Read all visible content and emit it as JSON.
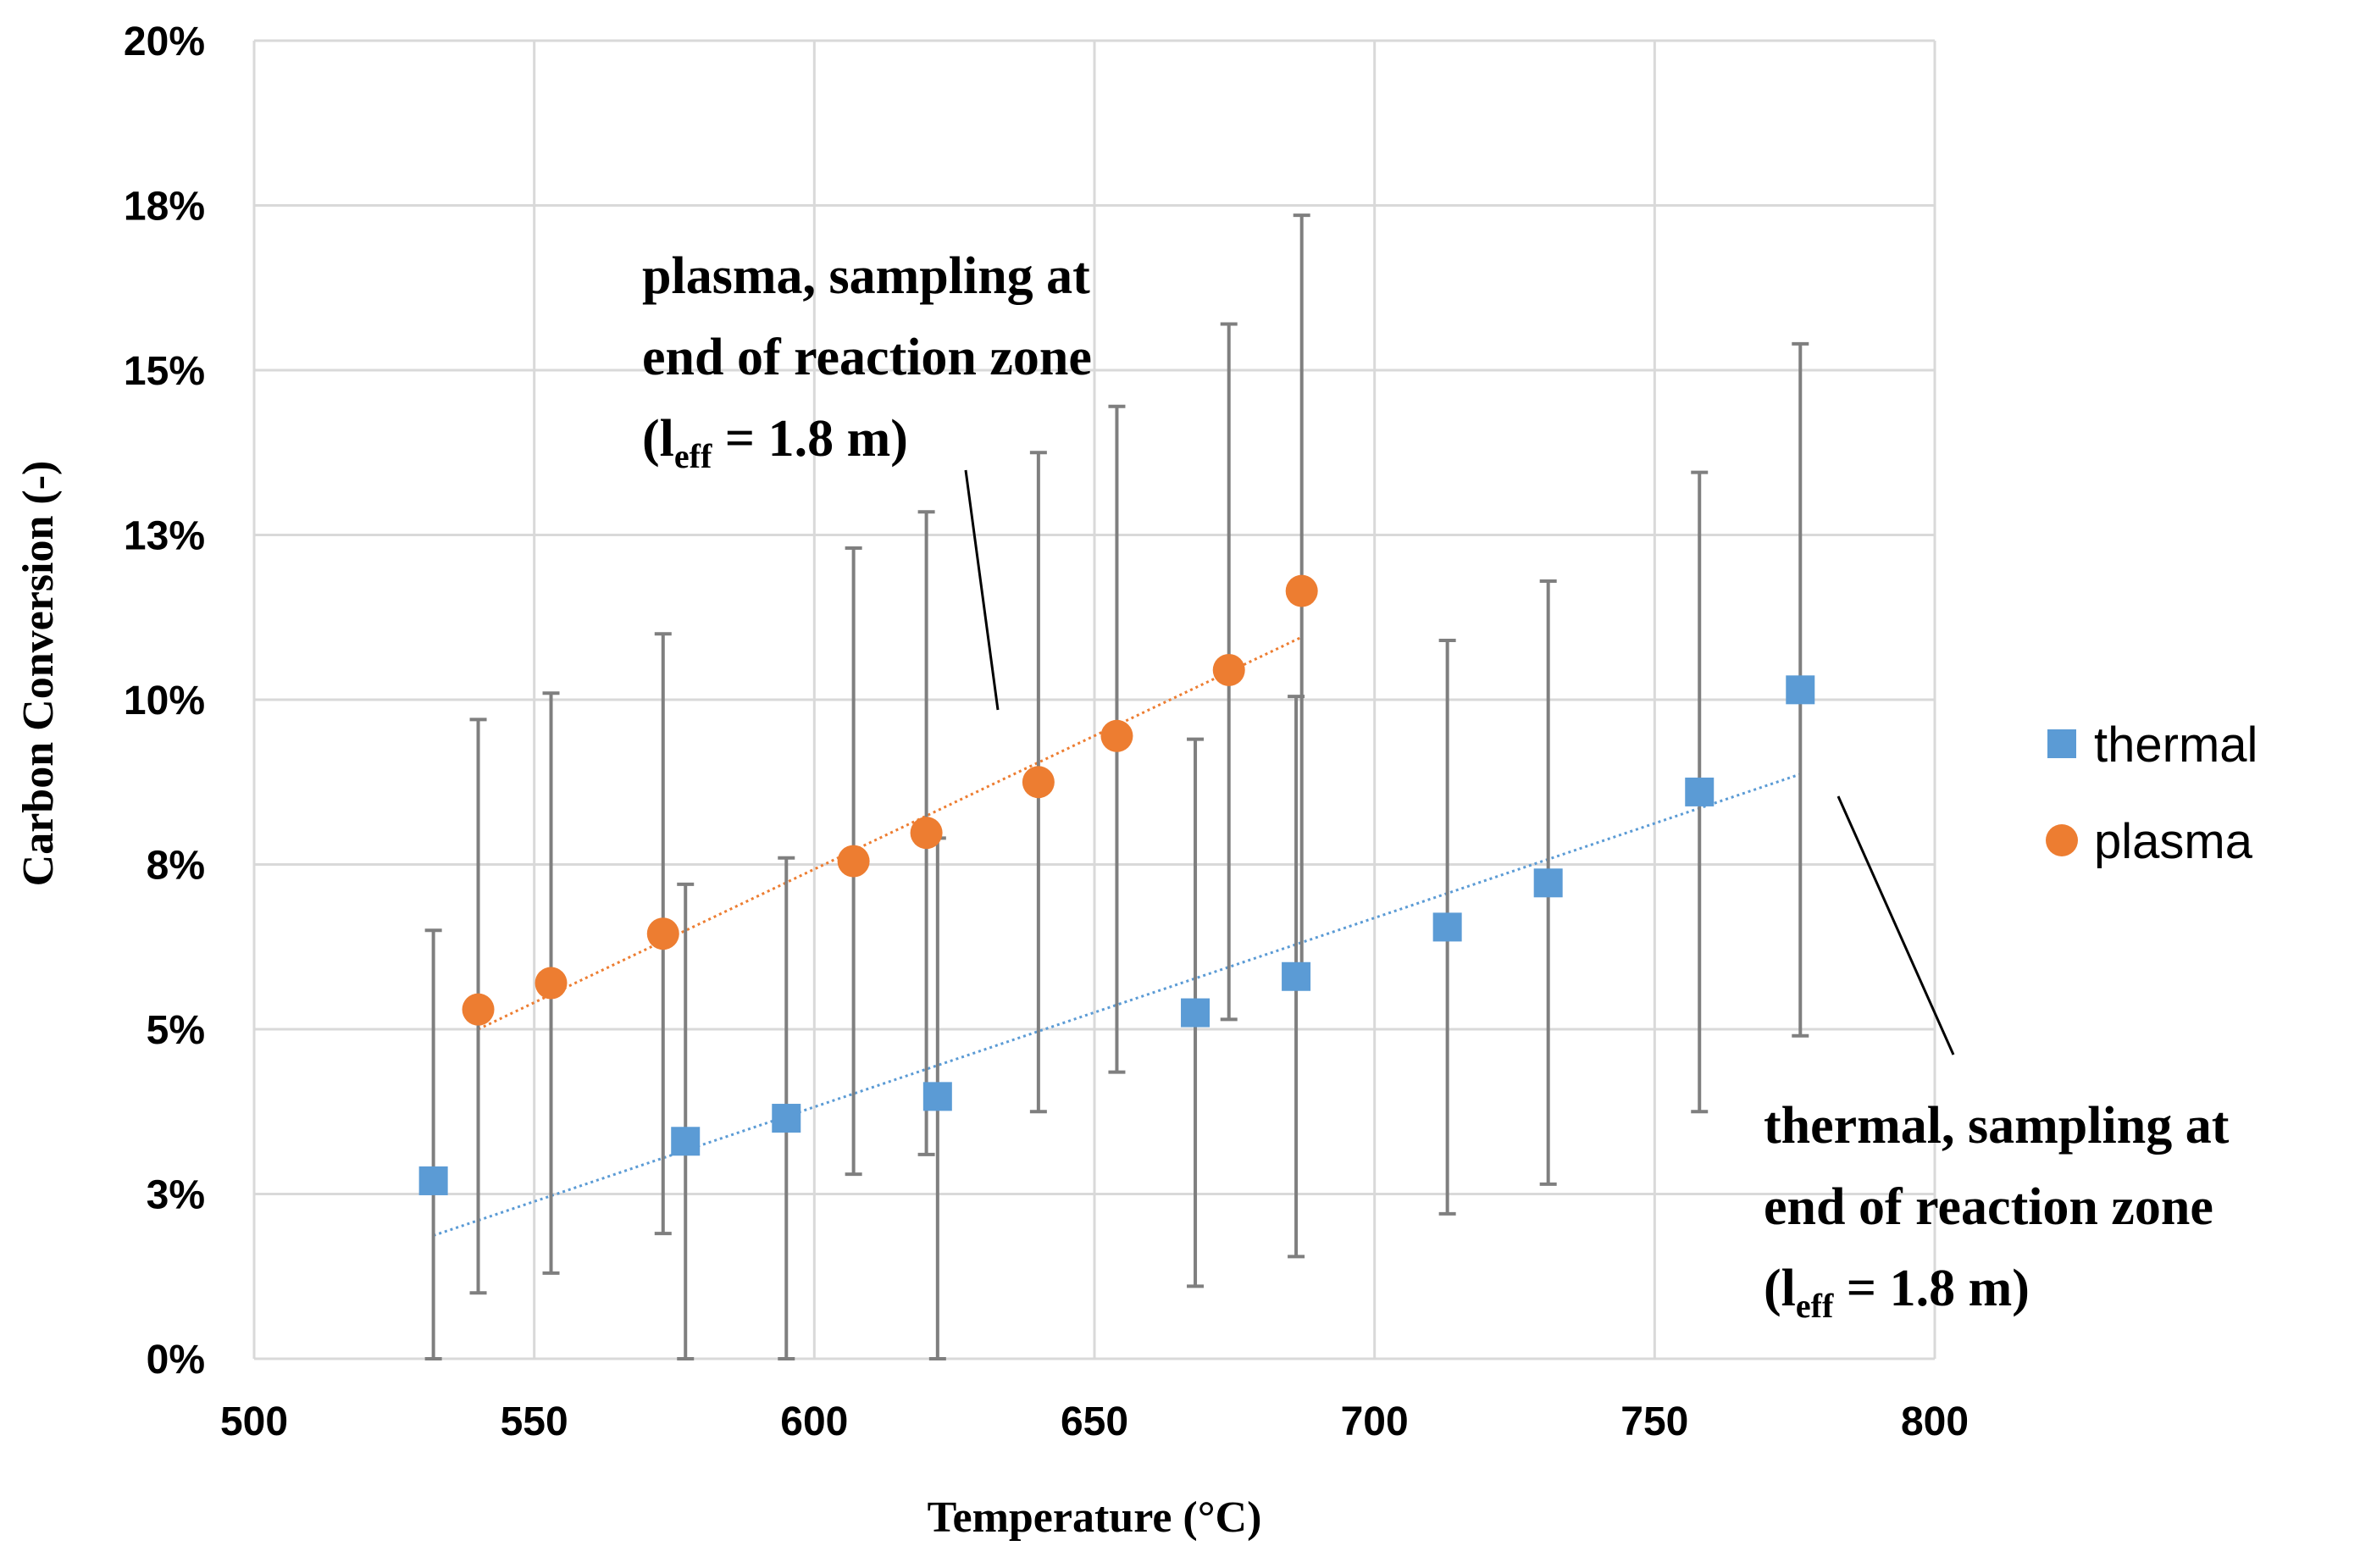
{
  "chart_data": {
    "type": "scatter",
    "xlabel": "Temperature (°C)",
    "ylabel": "Carbon Conversion (-)",
    "xlim": [
      500,
      800
    ],
    "ylim": [
      0,
      0.2
    ],
    "x_ticks": [
      500,
      550,
      600,
      650,
      700,
      750,
      800
    ],
    "y_ticks": [
      0,
      0.025,
      0.05,
      0.075,
      0.1,
      0.125,
      0.15,
      0.175,
      0.2
    ],
    "y_tick_labels": [
      "0%",
      "3%",
      "5%",
      "8%",
      "10%",
      "13%",
      "15%",
      "18%",
      "20%"
    ],
    "grid": true,
    "legend": {
      "position": "right",
      "entries": [
        {
          "label": "thermal",
          "marker": "square",
          "color": "#5b9bd5"
        },
        {
          "label": "plasma",
          "marker": "circle",
          "color": "#ed7d31"
        }
      ]
    },
    "series": [
      {
        "name": "thermal",
        "color": "#5b9bd5",
        "marker": "square",
        "points": [
          {
            "x": 532,
            "y": 0.027,
            "err_low": 0.0,
            "err_high": 0.065
          },
          {
            "x": 577,
            "y": 0.033,
            "err_low": 0.0,
            "err_high": 0.072
          },
          {
            "x": 595,
            "y": 0.0365,
            "err_low": 0.0,
            "err_high": 0.076
          },
          {
            "x": 622,
            "y": 0.0398,
            "err_low": 0.0,
            "err_high": 0.079
          },
          {
            "x": 668,
            "y": 0.0525,
            "err_low": 0.011,
            "err_high": 0.094
          },
          {
            "x": 686,
            "y": 0.058,
            "err_low": 0.0155,
            "err_high": 0.1005
          },
          {
            "x": 713,
            "y": 0.0655,
            "err_low": 0.022,
            "err_high": 0.109
          },
          {
            "x": 731,
            "y": 0.0722,
            "err_low": 0.0265,
            "err_high": 0.118
          },
          {
            "x": 758,
            "y": 0.086,
            "err_low": 0.0375,
            "err_high": 0.1345
          },
          {
            "x": 776,
            "y": 0.1015,
            "err_low": 0.049,
            "err_high": 0.154
          }
        ],
        "trendline": {
          "style": "dotted",
          "x": [
            532,
            776
          ],
          "y": [
            0.0187,
            0.0887
          ]
        }
      },
      {
        "name": "plasma",
        "color": "#ed7d31",
        "marker": "circle",
        "points": [
          {
            "x": 540,
            "y": 0.053,
            "err_low": 0.01,
            "err_high": 0.097
          },
          {
            "x": 553,
            "y": 0.057,
            "err_low": 0.013,
            "err_high": 0.101
          },
          {
            "x": 573,
            "y": 0.0645,
            "err_low": 0.019,
            "err_high": 0.11
          },
          {
            "x": 607,
            "y": 0.0755,
            "err_low": 0.028,
            "err_high": 0.123
          },
          {
            "x": 620,
            "y": 0.0798,
            "err_low": 0.031,
            "err_high": 0.1285
          },
          {
            "x": 640,
            "y": 0.0875,
            "err_low": 0.0375,
            "err_high": 0.1375
          },
          {
            "x": 654,
            "y": 0.0945,
            "err_low": 0.0435,
            "err_high": 0.1445
          },
          {
            "x": 674,
            "y": 0.1045,
            "err_low": 0.0515,
            "err_high": 0.157
          },
          {
            "x": 687,
            "y": 0.1165,
            "err_low": 0.0585,
            "err_high": 0.1735
          }
        ],
        "trendline": {
          "style": "dotted",
          "x": [
            540,
            687
          ],
          "y": [
            0.05,
            0.1095
          ]
        }
      }
    ],
    "annotations": [
      {
        "series": "plasma",
        "lines": [
          "plasma, sampling at",
          "end of reaction zone"
        ],
        "param": "(l",
        "subscript": "eff",
        "value": " = 1.8 m)",
        "position": "upper-middle"
      },
      {
        "series": "thermal",
        "lines": [
          "thermal, sampling at",
          "end of reaction zone"
        ],
        "param": "(l",
        "subscript": "eff",
        "value": " = 1.8 m)",
        "position": "lower-right"
      }
    ]
  }
}
